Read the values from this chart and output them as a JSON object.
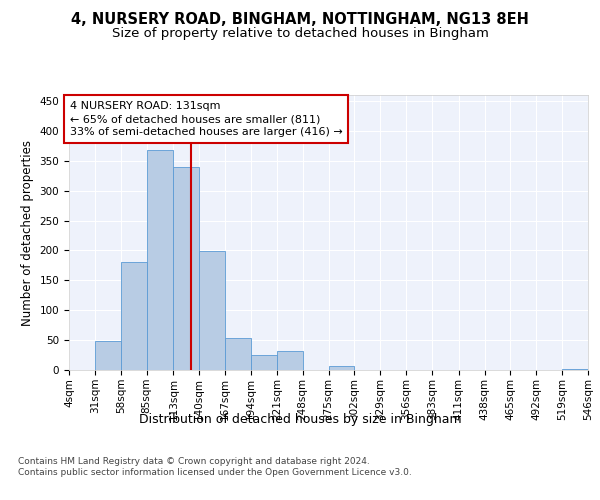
{
  "title_line1": "4, NURSERY ROAD, BINGHAM, NOTTINGHAM, NG13 8EH",
  "title_line2": "Size of property relative to detached houses in Bingham",
  "xlabel": "Distribution of detached houses by size in Bingham",
  "ylabel": "Number of detached properties",
  "bar_edges": [
    4,
    31,
    58,
    85,
    113,
    140,
    167,
    194,
    221,
    248,
    275,
    302,
    329,
    356,
    383,
    411,
    438,
    465,
    492,
    519,
    546
  ],
  "bar_heights": [
    0,
    49,
    181,
    368,
    339,
    199,
    54,
    25,
    31,
    0,
    6,
    0,
    0,
    0,
    0,
    0,
    0,
    0,
    0,
    1
  ],
  "bar_color": "#b8cce4",
  "bar_edge_color": "#5b9bd5",
  "property_size": 131,
  "property_line_color": "#cc0000",
  "ylim": [
    0,
    460
  ],
  "yticks": [
    0,
    50,
    100,
    150,
    200,
    250,
    300,
    350,
    400,
    450
  ],
  "annotation_text": "4 NURSERY ROAD: 131sqm\n← 65% of detached houses are smaller (811)\n33% of semi-detached houses are larger (416) →",
  "annotation_box_color": "#ffffff",
  "annotation_box_edge": "#cc0000",
  "footer_text": "Contains HM Land Registry data © Crown copyright and database right 2024.\nContains public sector information licensed under the Open Government Licence v3.0.",
  "background_color": "#eef2fb",
  "grid_color": "#ffffff",
  "title_fontsize": 10.5,
  "subtitle_fontsize": 9.5,
  "xlabel_fontsize": 9,
  "ylabel_fontsize": 8.5,
  "tick_fontsize": 7.5,
  "annotation_fontsize": 8,
  "footer_fontsize": 6.5
}
